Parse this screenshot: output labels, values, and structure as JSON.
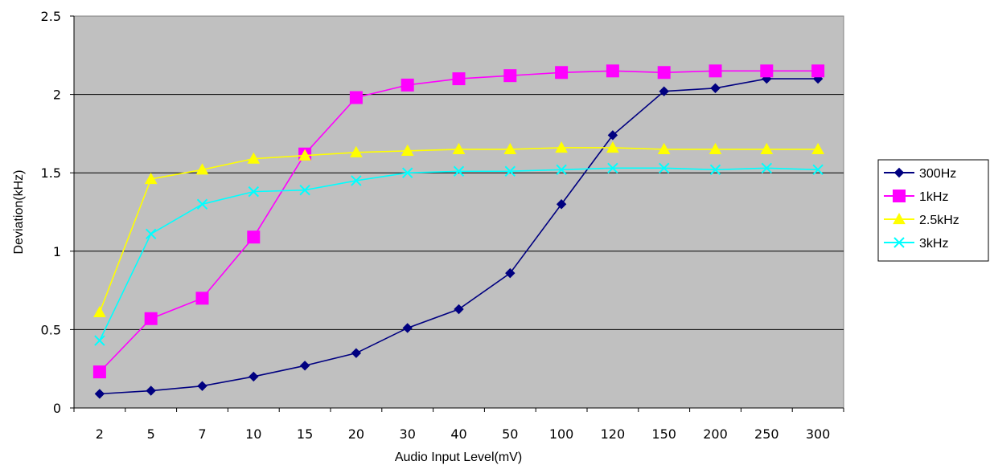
{
  "chart_data": {
    "type": "line",
    "title": "",
    "xlabel": "Audio Input Level(mV)",
    "ylabel": "Deviation(kHz)",
    "categories": [
      "2",
      "5",
      "7",
      "10",
      "15",
      "20",
      "30",
      "40",
      "50",
      "100",
      "120",
      "150",
      "200",
      "250",
      "300"
    ],
    "y_ticks": [
      "0",
      "0.5",
      "1",
      "1.5",
      "2",
      "2.5"
    ],
    "ylim": [
      0,
      2.5
    ],
    "grid": "horizontal",
    "legend_position": "right",
    "plot_background": "#c0c0c0",
    "series": [
      {
        "name": "300Hz",
        "color": "#000080",
        "marker": "diamond",
        "values": [
          0.09,
          0.11,
          0.14,
          0.2,
          0.27,
          0.35,
          0.51,
          0.63,
          0.86,
          1.3,
          1.74,
          2.02,
          2.04,
          2.1,
          2.1
        ]
      },
      {
        "name": "1kHz",
        "color": "#ff00ff",
        "marker": "square",
        "values": [
          0.23,
          0.57,
          0.7,
          1.09,
          1.62,
          1.98,
          2.06,
          2.1,
          2.12,
          2.14,
          2.15,
          2.14,
          2.15,
          2.15,
          2.15
        ]
      },
      {
        "name": "2.5kHz",
        "color": "#ffff00",
        "marker": "triangle",
        "values": [
          0.61,
          1.46,
          1.52,
          1.59,
          1.61,
          1.63,
          1.64,
          1.65,
          1.65,
          1.66,
          1.66,
          1.65,
          1.65,
          1.65,
          1.65
        ]
      },
      {
        "name": "3kHz",
        "color": "#00ffff",
        "marker": "x",
        "values": [
          0.43,
          1.11,
          1.3,
          1.38,
          1.39,
          1.45,
          1.5,
          1.51,
          1.51,
          1.52,
          1.53,
          1.53,
          1.52,
          1.53,
          1.52
        ]
      }
    ]
  }
}
